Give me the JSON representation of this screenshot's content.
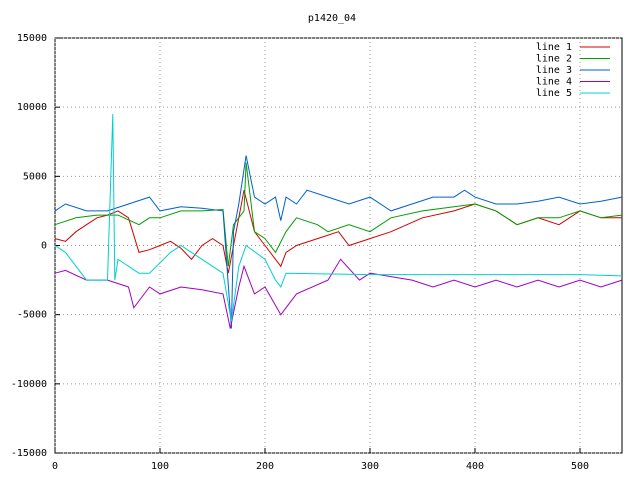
{
  "chart_data": {
    "type": "line",
    "title": "p1420_04",
    "xlim": [
      0,
      540
    ],
    "xticks": [
      0,
      100,
      200,
      300,
      400,
      500
    ],
    "ylim": [
      -15000,
      15000
    ],
    "yticks": [
      -15000,
      -10000,
      -5000,
      0,
      5000,
      10000,
      15000
    ],
    "grid": true,
    "legend": "top-right",
    "series": [
      {
        "name": "line 1",
        "color": "#d40000",
        "x": [
          0,
          10,
          20,
          30,
          40,
          50,
          60,
          70,
          80,
          90,
          100,
          110,
          120,
          130,
          140,
          150,
          160,
          165,
          170,
          175,
          180,
          190,
          200,
          210,
          215,
          220,
          230,
          250,
          270,
          280,
          300,
          320,
          350,
          380,
          400,
          420,
          440,
          460,
          480,
          500,
          520,
          540
        ],
        "values": [
          500,
          300,
          1000,
          1500,
          2000,
          2200,
          2500,
          2000,
          -500,
          -300,
          0,
          300,
          -200,
          -1000,
          0,
          500,
          0,
          -2000,
          0,
          2000,
          4000,
          1000,
          0,
          -1000,
          -1500,
          -500,
          0,
          500,
          1000,
          0,
          500,
          1000,
          2000,
          2500,
          3000,
          2500,
          1500,
          2000,
          1500,
          2500,
          2000,
          2000
        ]
      },
      {
        "name": "line 2",
        "color": "#00a000",
        "x": [
          0,
          20,
          40,
          60,
          80,
          90,
          100,
          120,
          140,
          160,
          165,
          170,
          180,
          182,
          190,
          200,
          210,
          220,
          230,
          250,
          260,
          280,
          300,
          320,
          350,
          380,
          400,
          420,
          440,
          460,
          480,
          500,
          520,
          540
        ],
        "values": [
          1500,
          2000,
          2200,
          2200,
          1500,
          2000,
          2000,
          2500,
          2500,
          2600,
          -1500,
          1500,
          2500,
          6000,
          1000,
          500,
          -500,
          1000,
          2000,
          1500,
          1000,
          1500,
          1000,
          2000,
          2500,
          2800,
          3000,
          2500,
          1500,
          2000,
          2000,
          2500,
          2000,
          2200
        ]
      },
      {
        "name": "line 3",
        "color": "#0060d0",
        "x": [
          0,
          10,
          30,
          50,
          70,
          90,
          100,
          120,
          140,
          160,
          168,
          170,
          175,
          182,
          190,
          200,
          210,
          215,
          220,
          230,
          240,
          260,
          280,
          300,
          320,
          340,
          360,
          380,
          390,
          400,
          420,
          440,
          460,
          480,
          500,
          520,
          540
        ],
        "values": [
          2500,
          3000,
          2500,
          2500,
          3000,
          3500,
          2500,
          2800,
          2700,
          2500,
          -6000,
          1000,
          3000,
          6500,
          3500,
          3000,
          3500,
          1800,
          3500,
          3000,
          4000,
          3500,
          3000,
          3500,
          2500,
          3000,
          3500,
          3500,
          4000,
          3500,
          3000,
          3000,
          3200,
          3500,
          3000,
          3200,
          3500
        ]
      },
      {
        "name": "line 4",
        "color": "#a000c0",
        "x": [
          0,
          10,
          30,
          50,
          70,
          75,
          90,
          100,
          120,
          140,
          160,
          167,
          175,
          180,
          190,
          200,
          215,
          230,
          260,
          272,
          290,
          300,
          340,
          360,
          380,
          400,
          420,
          440,
          460,
          480,
          500,
          520,
          540
        ],
        "values": [
          -2000,
          -1800,
          -2500,
          -2500,
          -3000,
          -4500,
          -3000,
          -3500,
          -3000,
          -3200,
          -3500,
          -6000,
          -3000,
          -1500,
          -3500,
          -3000,
          -5000,
          -3500,
          -2500,
          -1000,
          -2500,
          -2000,
          -2500,
          -3000,
          -2500,
          -3000,
          -2500,
          -3000,
          -2500,
          -3000,
          -2500,
          -3000,
          -2500
        ]
      },
      {
        "name": "line 5",
        "color": "#00d0d0",
        "x": [
          0,
          10,
          30,
          50,
          55,
          57,
          60,
          80,
          90,
          110,
          120,
          130,
          150,
          160,
          168,
          175,
          182,
          200,
          210,
          215,
          220,
          300,
          400,
          500,
          540
        ],
        "values": [
          0,
          -500,
          -2500,
          -2500,
          9500,
          -2500,
          -1000,
          -2000,
          -2000,
          -500,
          0,
          -500,
          -1500,
          -2000,
          -5500,
          -1500,
          0,
          -1000,
          -2500,
          -3000,
          -2000,
          -2100,
          -2100,
          -2100,
          -2200
        ]
      }
    ]
  }
}
